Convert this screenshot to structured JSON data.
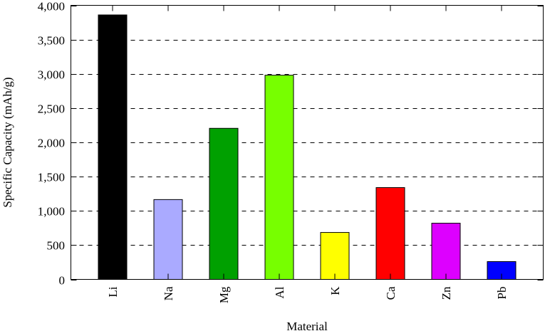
{
  "chart_data": {
    "type": "bar",
    "title": "",
    "xlabel": "Material",
    "ylabel": "Specific Capacity (mAh/g)",
    "categories": [
      "Li",
      "Na",
      "Mg",
      "Al",
      "K",
      "Ca",
      "Zn",
      "Pb"
    ],
    "values": [
      3860,
      1165,
      2205,
      2980,
      685,
      1340,
      820,
      260
    ],
    "colors": [
      "#000000",
      "#aaaaff",
      "#00a000",
      "#77ff00",
      "#ffff00",
      "#ff0000",
      "#dd00ff",
      "#0000ff"
    ],
    "ylim": [
      0,
      4000
    ],
    "yticks": [
      0,
      500,
      1000,
      1500,
      2000,
      2500,
      3000,
      3500,
      4000
    ],
    "ytick_labels": [
      "0",
      "500",
      "1,000",
      "1,500",
      "2,000",
      "2,500",
      "3,000",
      "3,500",
      "4,000"
    ],
    "grid": "horizontal dashed",
    "legend": "none"
  }
}
